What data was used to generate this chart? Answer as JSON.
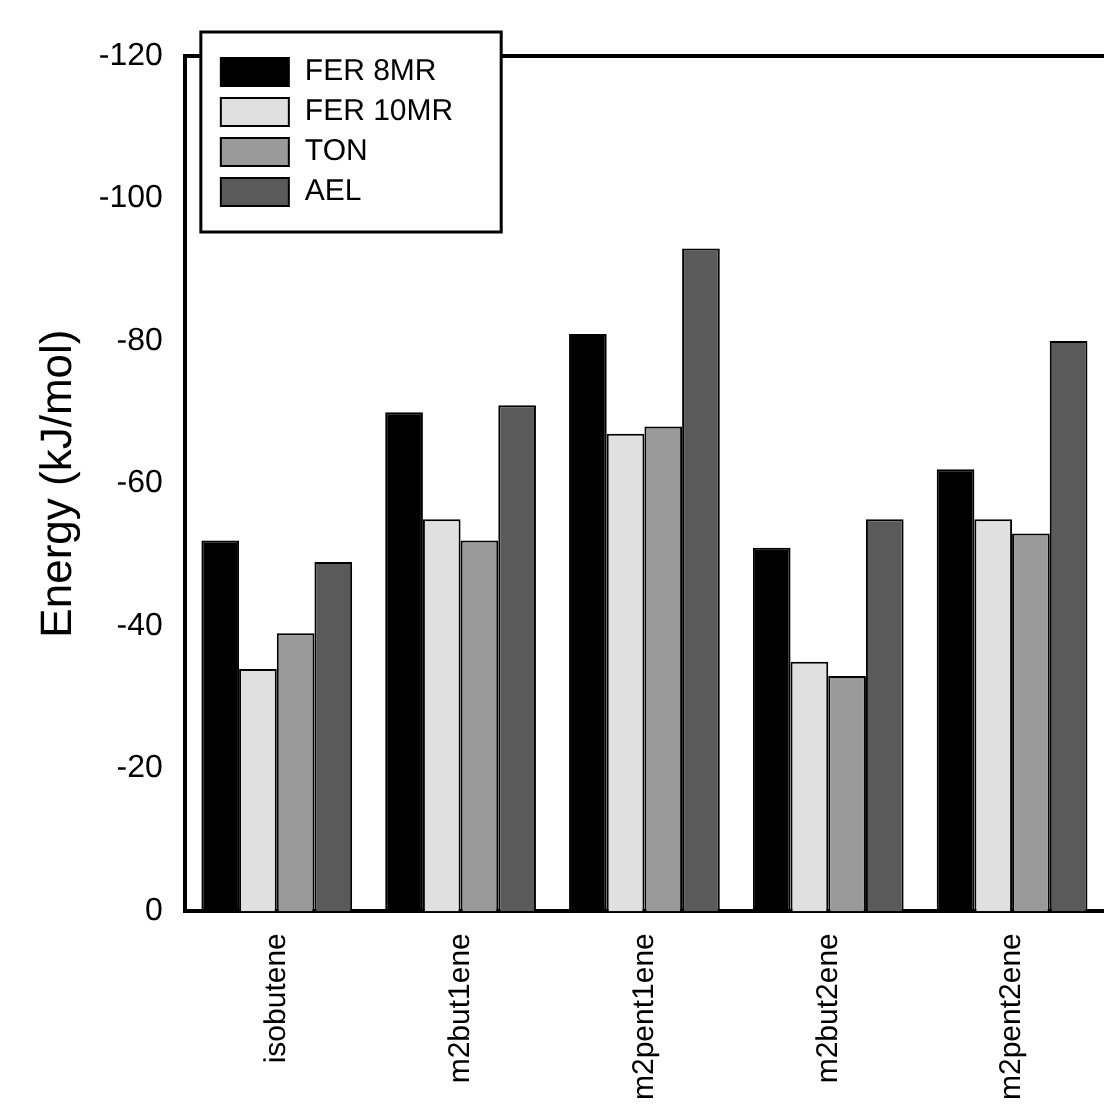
{
  "chart_data": {
    "type": "bar",
    "ylabel": "Energy (kJ/mol)",
    "categories": [
      "isobutene",
      "m2but1ene",
      "m2pent1ene",
      "m2but2ene",
      "m2pent2ene"
    ],
    "series": [
      {
        "name": "FER 8MR",
        "color": "#000000",
        "values": [
          -52,
          -70,
          -81,
          -51,
          -62
        ]
      },
      {
        "name": "FER 10MR",
        "color": "#e0e0e0",
        "values": [
          -34,
          -55,
          -67,
          -35,
          -55
        ]
      },
      {
        "name": "TON",
        "color": "#9a9a9a",
        "values": [
          -39,
          -52,
          -68,
          -33,
          -53
        ]
      },
      {
        "name": "AEL",
        "color": "#5a5a5a",
        "values": [
          -49,
          -71,
          -93,
          -55,
          -80
        ]
      }
    ],
    "ylim": [
      0,
      -120
    ],
    "yticks": [
      0,
      -20,
      -40,
      -60,
      -80,
      -100,
      -120
    ],
    "grid": false,
    "legend": "top left"
  }
}
